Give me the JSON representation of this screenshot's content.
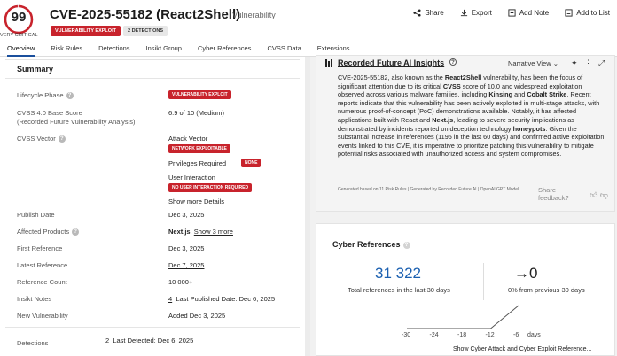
{
  "header": {
    "score": "99",
    "score_label": "VERY CRITICAL",
    "title": "CVE-2025-55182 (React2Shell)",
    "entity_type": "Vulnerability",
    "badge_exploit": "VULNERABILITY EXPLOIT",
    "badge_detections": "2 DETECTIONS",
    "actions": {
      "share": "Share",
      "export": "Export",
      "add_note": "Add Note",
      "add_to_list": "Add to List"
    },
    "colors": {
      "critical": "#c8232c",
      "link": "#1a5fb0"
    }
  },
  "tabs": [
    "Overview",
    "Risk Rules",
    "Detections",
    "Insikt Group",
    "Cyber References",
    "CVSS Data",
    "Extensions"
  ],
  "summary": {
    "title": "Summary",
    "lifecycle_phase_label": "Lifecycle Phase",
    "lifecycle_phase_value": "VULNERABILITY EXPLOIT",
    "cvss_base_label_1": "CVSS 4.0 Base Score",
    "cvss_base_label_2": "(Recorded Future Vulnerability Analysis)",
    "cvss_base_value": "6.9 of 10 (Medium)",
    "cvss_vector_label": "CVSS Vector",
    "attack_vector_label": "Attack Vector",
    "attack_vector_value": "NETWORK EXPLOITABLE",
    "privileges_label": "Privileges Required",
    "privileges_value": "NONE",
    "user_interaction_label": "User Interaction",
    "user_interaction_value": "NO USER INTERACTION REQUIRED",
    "show_more": "Show more Details",
    "publish_date_label": "Publish Date",
    "publish_date_value": "Dec 3, 2025",
    "affected_label": "Affected Products",
    "affected_value": "Next.js",
    "affected_more": "Show 3 more",
    "first_ref_label": "First Reference",
    "first_ref_value": "Dec 3, 2025",
    "latest_ref_label": "Latest Reference",
    "latest_ref_value": "Dec 7, 2025",
    "ref_count_label": "Reference Count",
    "ref_count_value": "10 000+",
    "insikt_label": "Insikt Notes",
    "insikt_count": "4",
    "insikt_last": "Last Published Date: Dec 6, 2025",
    "new_vuln_label": "New Vulnerability",
    "new_vuln_value": "Added Dec 3, 2025",
    "detections_label": "Detections",
    "detections_count": "2",
    "detections_last": "Last Detected: Dec 6, 2025"
  },
  "ai": {
    "title": "Recorded Future AI Insights",
    "mode": "Narrative View",
    "body_html_parts": {
      "p1": "CVE-2025-55182, also known as the ",
      "b1": "React2Shell",
      "p2": " vulnerability, has been the focus of significant attention due to its critical ",
      "b2": "CVSS",
      "p3": " score of 10.0 and widespread exploitation observed across various malware families, including ",
      "b3": "Kinsing",
      "p4": " and ",
      "b4": "Cobalt Strike",
      "p5": ". Recent reports indicate that this vulnerability has been actively exploited in multi-stage attacks, with numerous proof-of-concept (PoC) demonstrations available. Notably, it has affected applications built with React and ",
      "b5": "Next.js",
      "p6": ", leading to severe security implications as demonstrated by incidents reported on deception technology ",
      "b6": "honeypots",
      "p7": ". Given the substantial increase in references (1195 in the last 60 days) and confirmed active exploitation events linked to this CVE, it is imperative to prioritize patching this vulnerability to mitigate potential risks associated with unauthorized access and system compromises."
    },
    "footer": "Generated based on 11 Risk Rules | Generated by Recorded Future AI | OpenAI GPT Model",
    "share_feedback": "Share feedback?"
  },
  "cyber_refs": {
    "title": "Cyber References",
    "total": "31 322",
    "total_label": "Total references in the last 30 days",
    "change": "→0",
    "change_label": "0% from previous 30 days",
    "link": "Show Cyber Attack and Cyber Exploit Reference..."
  },
  "chart_data": {
    "type": "line",
    "x": [
      -30,
      -24,
      -18,
      -12,
      -6
    ],
    "x_ticks": [
      "-30",
      "-24",
      "-18",
      "-12",
      "-6"
    ],
    "x_unit": "days",
    "series": [
      {
        "values": [
          0,
          0,
          0,
          0,
          1
        ]
      }
    ]
  }
}
